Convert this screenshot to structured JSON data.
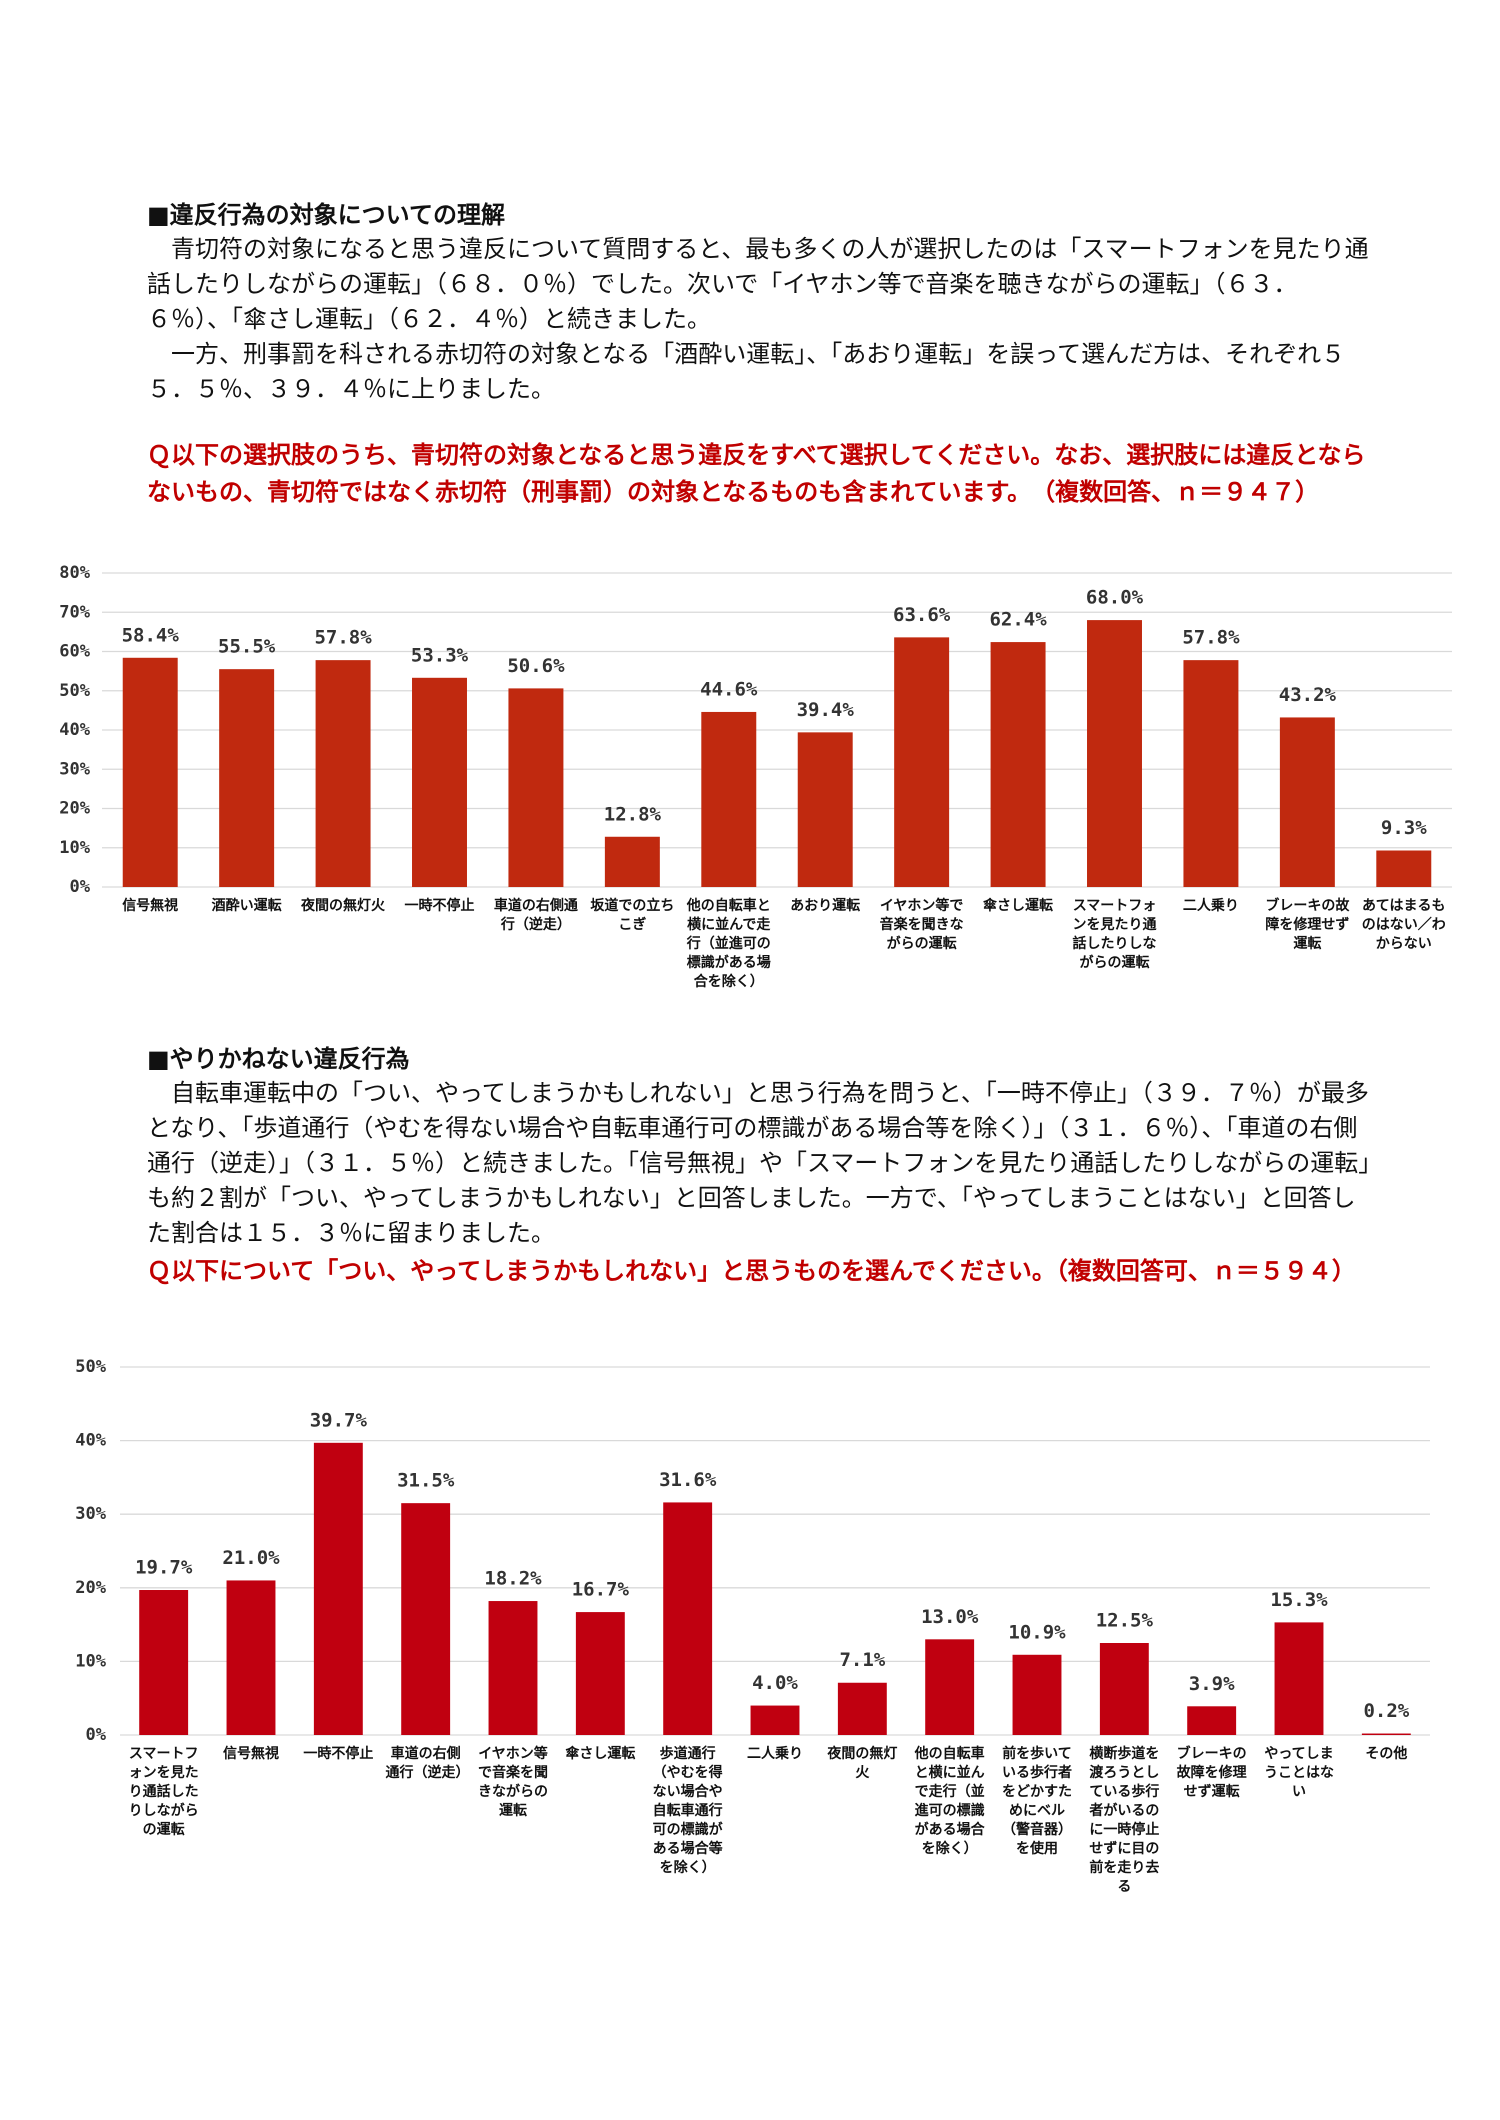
{
  "sections": [
    {
      "heading": "■違反行為の対象についての理解",
      "paragraphs": [
        "青切符の対象になると思う違反について質問すると、最も多くの人が選択したのは「スマートフォンを見たり通話したりしながらの運転」（６８．０％）でした。次いで「イヤホン等で音楽を聴きながらの運転」（６３．６％）、「傘さし運転」（６２．４％）と続きました。",
        "一方、刑事罰を科される赤切符の対象となる「酒酔い運転」、「あおり運転」を誤って選んだ方は、それぞれ５５．５％、３９．４％に上りました。"
      ],
      "question": "Ｑ以下の選択肢のうち、青切符の対象となると思う違反をすべて選択してください。なお、選択肢には違反とならないもの、青切符ではなく赤切符（刑事罰）の対象となるものも含まれています。　（複数回答、ｎ＝９４７）"
    },
    {
      "heading": "■やりかねない違反行為",
      "paragraphs": [
        "自転車運転中の「つい、やってしまうかもしれない」と思う行為を問うと、「一時不停止」（３９．７％）が最多となり、「歩道通行（やむを得ない場合や自転車通行可の標識がある場合等を除く）」（３１．６％）、「車道の右側通行（逆走）」（３１．５％）と続きました。「信号無視」や「スマートフォンを見たり通話したりしながらの運転」も約２割が「つい、やってしまうかもしれない」と回答しました。一方で、「やってしまうことはない」と回答した割合は１５．３％に留まりました。"
      ],
      "question": "Ｑ以下について「つい、やってしまうかもしれない」と思うものを選んでください。（複数回答可、ｎ＝５９４）"
    }
  ],
  "chart_data": [
    {
      "type": "bar",
      "categories": [
        "信号無視",
        "酒酔い運転",
        "夜間の無灯火",
        "一時不停止",
        "車道の右側通行（逆走）",
        "坂道での立ちこぎ",
        "他の自転車と横に並んで走行（並進可の標識がある場合を除く）",
        "あおり運転",
        "イヤホン等で音楽を聞きながらの運転",
        "傘さし運転",
        "スマートフォンを見たり通話したりしながらの運転",
        "二人乗り",
        "ブレーキの故障を修理せず運転",
        "あてはまるものはない／わからない"
      ],
      "values": [
        58.4,
        55.5,
        57.8,
        53.3,
        50.6,
        12.8,
        44.6,
        39.4,
        63.6,
        62.4,
        68.0,
        57.8,
        43.2,
        9.3
      ],
      "value_labels": [
        "58.4%",
        "55.5%",
        "57.8%",
        "53.3%",
        "50.6%",
        "12.8%",
        "44.6%",
        "39.4%",
        "63.6%",
        "62.4%",
        "68.0%",
        "57.8%",
        "43.2%",
        "9.3%"
      ],
      "color": "#c0290f",
      "ylim": [
        0,
        80
      ],
      "yticks": [
        {
          "value": 0,
          "label": "0%"
        },
        {
          "value": 10,
          "label": "10%"
        },
        {
          "value": 20,
          "label": "20%"
        },
        {
          "value": 30,
          "label": "30%"
        },
        {
          "value": 40,
          "label": "40%"
        },
        {
          "value": 50,
          "label": "50%"
        },
        {
          "value": 60,
          "label": "60%"
        },
        {
          "value": 70,
          "label": "70%"
        },
        {
          "value": 80,
          "label": "80%"
        }
      ],
      "grid": true
    },
    {
      "type": "bar",
      "categories": [
        "スマートフォンを見たり通話したりしながらの運転",
        "信号無視",
        "一時不停止",
        "車道の右側通行（逆走）",
        "イヤホン等で音楽を聞きながらの運転",
        "傘さし運転",
        "歩道通行（やむを得ない場合や自転車通行可の標識がある場合等を除く）",
        "二人乗り",
        "夜間の無灯火",
        "他の自転車と横に並んで走行（並進可の標識がある場合を除く）",
        "前を歩いている歩行者をどかすためにベル（警音器）を使用",
        "横断歩道を渡ろうとしている歩行者がいるのに一時停止せずに目の前を走り去る",
        "ブレーキの故障を修理せず運転",
        "やってしまうことはない",
        "その他"
      ],
      "values": [
        19.7,
        21.0,
        39.7,
        31.5,
        18.2,
        16.7,
        31.6,
        4.0,
        7.1,
        13.0,
        10.9,
        12.5,
        3.9,
        15.3,
        0.2
      ],
      "value_labels": [
        "19.7%",
        "21.0%",
        "39.7%",
        "31.5%",
        "18.2%",
        "16.7%",
        "31.6%",
        "4.0%",
        "7.1%",
        "13.0%",
        "10.9%",
        "12.5%",
        "3.9%",
        "15.3%",
        "0.2%"
      ],
      "color": "#c00010",
      "ylim": [
        0,
        50
      ],
      "yticks": [
        {
          "value": 0,
          "label": "0%"
        },
        {
          "value": 10,
          "label": "10%"
        },
        {
          "value": 20,
          "label": "20%"
        },
        {
          "value": 30,
          "label": "30%"
        },
        {
          "value": 40,
          "label": "40%"
        },
        {
          "value": 50,
          "label": "50%"
        }
      ],
      "grid": true
    }
  ]
}
